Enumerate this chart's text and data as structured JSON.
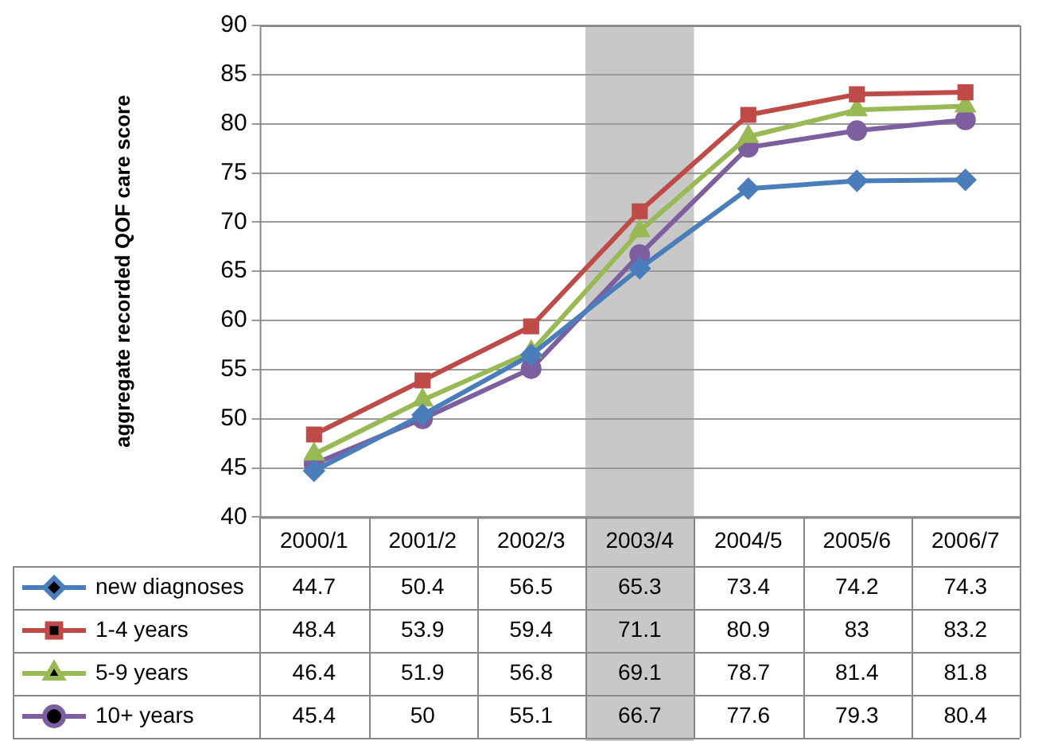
{
  "chart_data": {
    "type": "line",
    "ylabel": "aggregate recorded QOF care score",
    "categories": [
      "2000/1",
      "2001/2",
      "2002/3",
      "2003/4",
      "2004/5",
      "2005/6",
      "2006/7"
    ],
    "series": [
      {
        "name": "new diagnoses",
        "color": "#4a7ebb",
        "marker": "diamond",
        "values": [
          44.7,
          50.4,
          56.5,
          65.3,
          73.4,
          74.2,
          74.3
        ]
      },
      {
        "name": "1-4 years",
        "color": "#be4b48",
        "marker": "square",
        "values": [
          48.4,
          53.9,
          59.4,
          71.1,
          80.9,
          83,
          83.2
        ]
      },
      {
        "name": "5-9 years",
        "color": "#98b954",
        "marker": "triangle",
        "values": [
          46.4,
          51.9,
          56.8,
          69.1,
          78.7,
          81.4,
          81.8
        ]
      },
      {
        "name": "10+ years",
        "color": "#7d5fa0",
        "marker": "circle",
        "values": [
          45.4,
          50,
          55.1,
          66.7,
          77.6,
          79.3,
          80.4
        ]
      }
    ],
    "ylim": [
      40,
      90
    ],
    "yticks": [
      40,
      45,
      50,
      55,
      60,
      65,
      70,
      75,
      80,
      85,
      90
    ],
    "grid": "y",
    "legend": "bottom",
    "data_labels": true,
    "line_style": "solid",
    "bands": [
      {
        "axis": "x",
        "from": "2003/4",
        "to": "2003/4",
        "color": "#c8c8c8"
      }
    ]
  }
}
